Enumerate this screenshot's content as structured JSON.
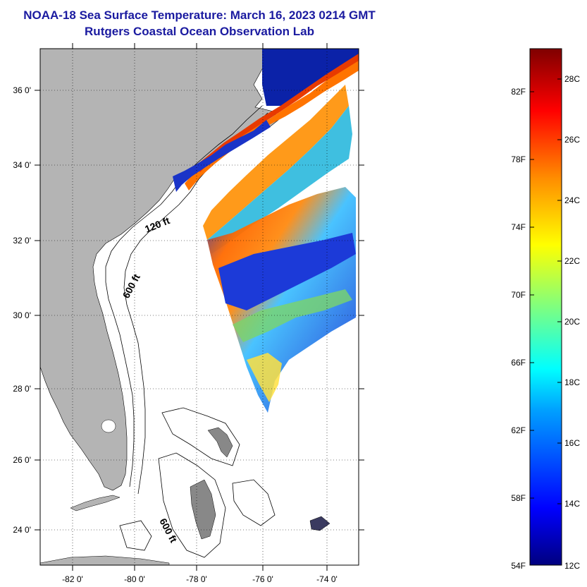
{
  "title": {
    "line1": "NOAA-18 Sea Surface Temperature:  March 16, 2023 0214 GMT",
    "line2": "Rutgers Coastal Ocean Observation Lab"
  },
  "map": {
    "lon_ticks": [
      "-82 0'",
      "-80 0'",
      "-78 0'",
      "-76 0'",
      "-74 0'"
    ],
    "lat_ticks": [
      "36 0'",
      "34 0'",
      "32 0'",
      "30 0'",
      "28 0'",
      "26 0'",
      "24 0'"
    ],
    "contours": [
      "120 ft",
      "600 ft",
      "600 ft"
    ],
    "land_color": "#b4b4b4"
  },
  "colorbar": {
    "fahrenheit": [
      "82F",
      "78F",
      "74F",
      "70F",
      "66F",
      "62F",
      "58F",
      "54F"
    ],
    "celsius": [
      "28C",
      "26C",
      "24C",
      "22C",
      "20C",
      "18C",
      "16C",
      "14C",
      "12C"
    ],
    "range_c": [
      12,
      29
    ]
  }
}
